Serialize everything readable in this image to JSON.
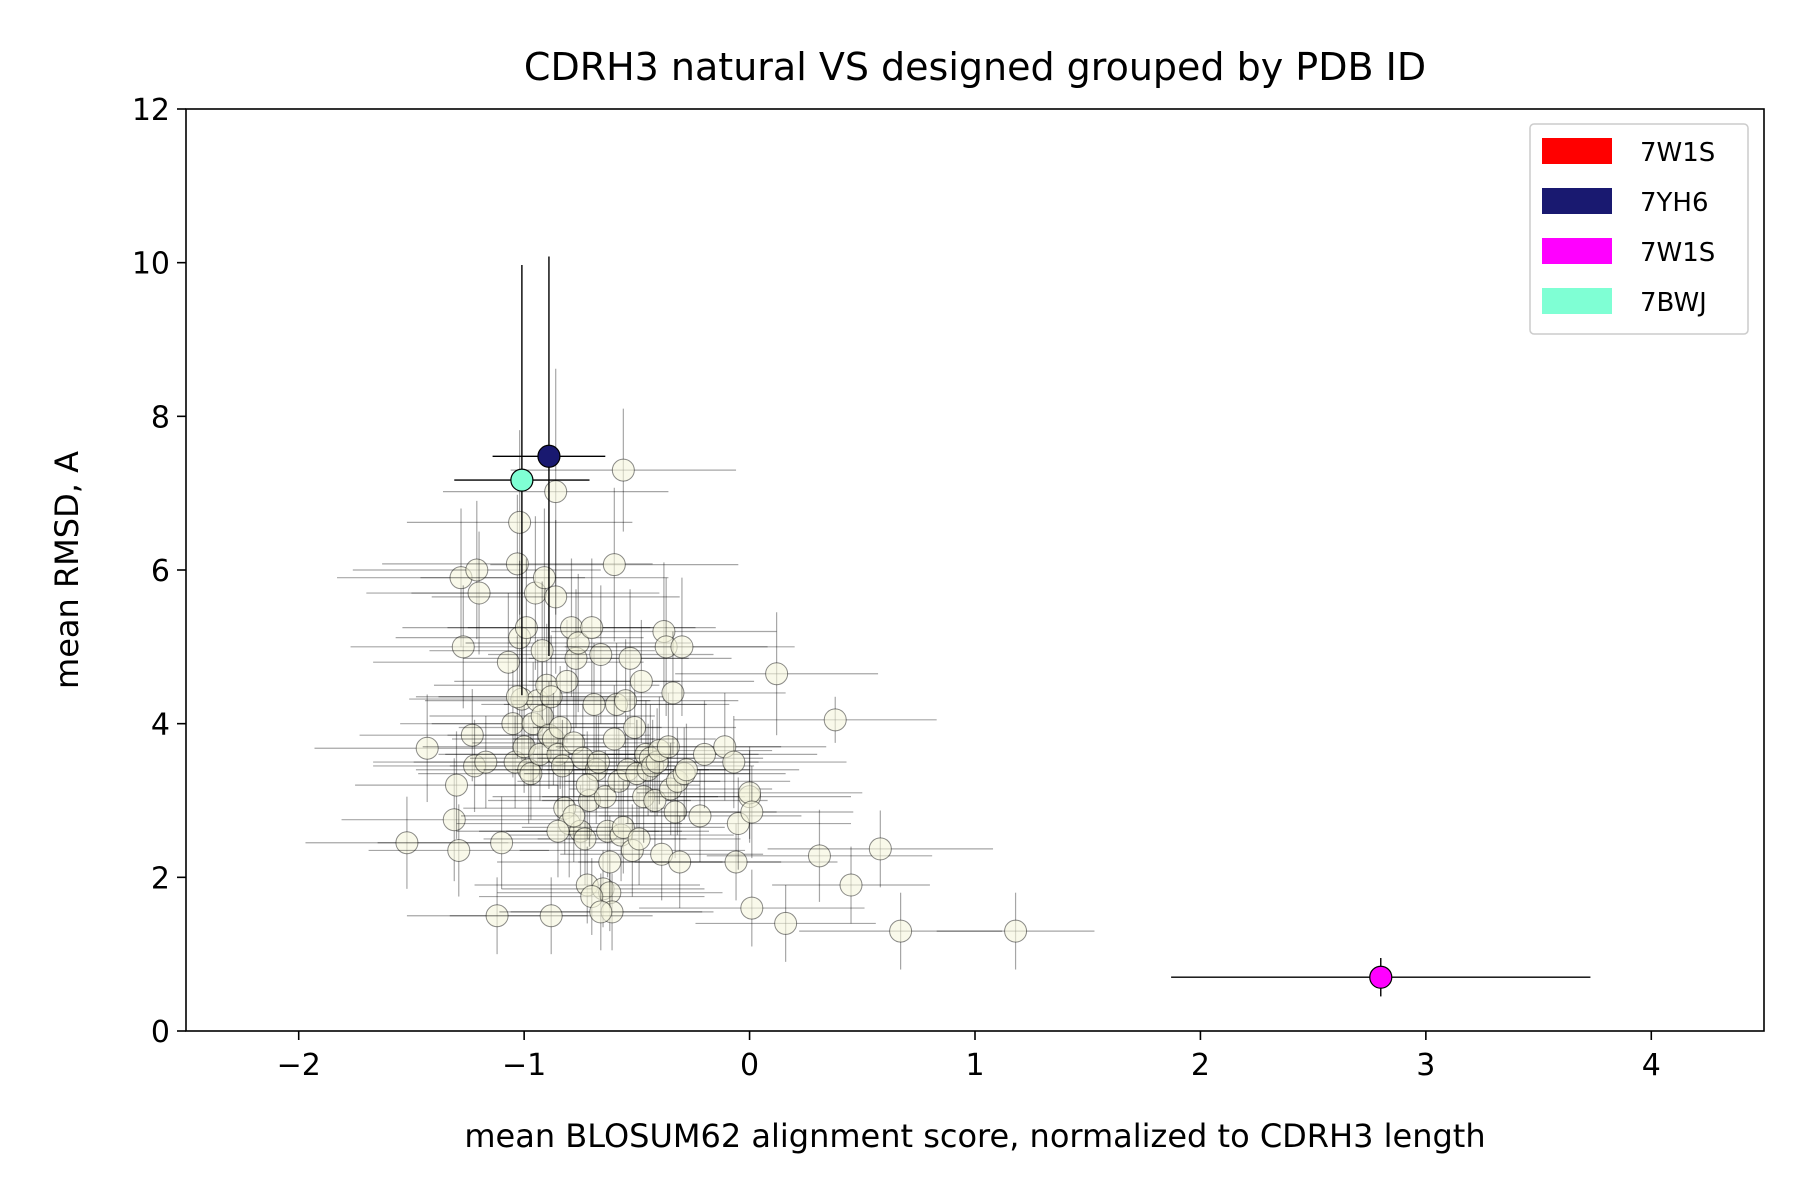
{
  "chart_data": {
    "type": "scatter",
    "title": "CDRH3 natural VS designed grouped by PDB ID",
    "xlabel": "mean BLOSUM62 alignment score, normalized to CDRH3 length",
    "ylabel": "mean RMSD, A",
    "xlim": [
      -2.5,
      4.5
    ],
    "ylim": [
      0,
      12
    ],
    "xticks": [
      -2,
      -1,
      0,
      1,
      2,
      3,
      4
    ],
    "xtick_labels": [
      "−2",
      "−1",
      "0",
      "1",
      "2",
      "3",
      "4"
    ],
    "yticks": [
      0,
      2,
      4,
      6,
      8,
      10,
      12
    ],
    "ytick_labels": [
      "0",
      "2",
      "4",
      "6",
      "8",
      "10",
      "12"
    ],
    "grid": false,
    "legend_position": "top-right",
    "legend": [
      {
        "label": "7W1S",
        "color": "#ff0000"
      },
      {
        "label": "7YH6",
        "color": "#191970"
      },
      {
        "label": "7W1S",
        "color": "#ff00ff"
      },
      {
        "label": "7BWJ",
        "color": "#7fffd4"
      }
    ],
    "background_points": {
      "color": "#f5f5dc",
      "x": [
        -1.52,
        -1.43,
        -1.31,
        -1.3,
        -1.29,
        -1.28,
        -1.27,
        -1.23,
        -1.22,
        -1.21,
        -1.2,
        -1.17,
        -1.12,
        -1.1,
        -1.07,
        -1.05,
        -1.04,
        -1.03,
        -1.02,
        -1.01,
        -1.0,
        -0.99,
        -0.98,
        -0.97,
        -0.96,
        -0.95,
        -0.94,
        -0.93,
        -0.92,
        -0.91,
        -0.9,
        -0.89,
        -0.88,
        -0.87,
        -0.86,
        -0.85,
        -0.84,
        -0.83,
        -0.82,
        -0.81,
        -0.8,
        -0.79,
        -0.78,
        -0.77,
        -0.76,
        -0.75,
        -0.74,
        -0.73,
        -0.72,
        -0.71,
        -0.7,
        -0.69,
        -0.68,
        -0.67,
        -0.66,
        -0.65,
        -0.64,
        -0.63,
        -0.62,
        -0.61,
        -0.6,
        -0.59,
        -0.58,
        -0.57,
        -0.56,
        -0.55,
        -0.54,
        -0.53,
        -0.52,
        -0.51,
        -0.5,
        -0.49,
        -0.48,
        -0.47,
        -0.46,
        -0.45,
        -0.44,
        -0.43,
        -0.42,
        -0.41,
        -0.4,
        -0.39,
        -0.38,
        -0.37,
        -0.36,
        -0.35,
        -0.34,
        -0.33,
        -0.32,
        -0.31,
        -0.3,
        -0.29,
        -0.28,
        -0.22,
        -0.2,
        -0.11,
        -0.07,
        -0.06,
        -0.05,
        0.0,
        0.0,
        0.01,
        0.01,
        0.12,
        0.16,
        0.31,
        0.38,
        0.45,
        0.58,
        0.67,
        1.18,
        -0.86,
        -0.56,
        -1.02,
        -1.03,
        -0.92,
        -0.6,
        -0.78,
        -0.88,
        -0.7,
        -0.85,
        -0.62,
        -0.66,
        -0.72
      ],
      "y": [
        2.45,
        3.68,
        2.75,
        3.2,
        2.35,
        5.9,
        5.0,
        3.85,
        3.45,
        6.0,
        5.7,
        3.5,
        1.5,
        2.45,
        4.8,
        4.0,
        3.5,
        6.08,
        5.12,
        4.32,
        3.7,
        5.25,
        3.4,
        3.35,
        4.0,
        5.7,
        4.3,
        3.6,
        4.1,
        5.9,
        4.5,
        3.85,
        4.35,
        3.8,
        5.65,
        3.6,
        3.95,
        3.45,
        2.9,
        4.55,
        2.7,
        5.25,
        3.75,
        4.85,
        5.05,
        2.6,
        3.55,
        2.5,
        1.9,
        3.0,
        5.25,
        4.25,
        3.4,
        3.5,
        4.9,
        1.85,
        3.05,
        2.6,
        1.8,
        1.55,
        6.07,
        4.25,
        3.25,
        2.55,
        2.65,
        4.3,
        3.4,
        4.85,
        2.35,
        3.95,
        3.35,
        2.5,
        4.55,
        3.05,
        3.6,
        3.4,
        3.55,
        3.45,
        3.0,
        3.5,
        3.65,
        2.3,
        5.2,
        5.0,
        3.7,
        3.15,
        4.4,
        2.85,
        3.25,
        2.2,
        5.0,
        3.35,
        3.4,
        2.8,
        3.6,
        3.7,
        3.5,
        2.2,
        2.7,
        3.05,
        3.1,
        2.85,
        1.6,
        4.65,
        1.4,
        2.28,
        4.05,
        1.9,
        2.37,
        1.3,
        1.3,
        7.02,
        7.3,
        6.62,
        4.35,
        4.95,
        3.8,
        2.8,
        1.5,
        1.75,
        2.6,
        2.2,
        1.55,
        3.2
      ],
      "xerr": [
        0.45,
        0.5,
        0.5,
        0.45,
        0.4,
        0.55,
        0.5,
        0.5,
        0.45,
        0.55,
        0.5,
        0.5,
        0.4,
        0.55,
        0.6,
        0.5,
        0.45,
        0.6,
        0.55,
        0.5,
        0.45,
        0.55,
        0.5,
        0.5,
        0.45,
        0.55,
        0.5,
        0.45,
        0.5,
        0.55,
        0.5,
        0.45,
        0.5,
        0.45,
        0.55,
        0.5,
        0.45,
        0.5,
        0.45,
        0.5,
        0.5,
        0.55,
        0.45,
        0.5,
        0.5,
        0.45,
        0.5,
        0.45,
        0.5,
        0.45,
        0.55,
        0.5,
        0.5,
        0.45,
        0.5,
        0.45,
        0.5,
        0.45,
        0.5,
        0.45,
        0.55,
        0.5,
        0.45,
        0.5,
        0.45,
        0.5,
        0.5,
        0.45,
        0.5,
        0.45,
        0.5,
        0.45,
        0.5,
        0.45,
        0.5,
        0.45,
        0.5,
        0.45,
        0.5,
        0.45,
        0.5,
        0.45,
        0.5,
        0.45,
        0.5,
        0.45,
        0.5,
        0.45,
        0.5,
        0.45,
        0.5,
        0.45,
        0.5,
        0.45,
        0.5,
        0.45,
        0.5,
        0.45,
        0.5,
        0.45,
        0.5,
        0.45,
        0.5,
        0.45,
        0.4,
        0.5,
        0.45,
        0.35,
        0.5,
        0.45,
        0.35,
        0.5,
        0.5,
        0.5,
        0.45,
        0.5,
        0.45,
        0.5,
        0.45,
        0.5,
        0.45,
        0.5,
        0.45,
        0.5
      ],
      "yerr": [
        0.6,
        0.7,
        0.8,
        0.7,
        0.6,
        0.9,
        0.8,
        0.6,
        0.6,
        0.9,
        0.8,
        0.6,
        0.5,
        0.6,
        0.9,
        0.7,
        0.6,
        0.9,
        1.0,
        0.8,
        0.6,
        0.9,
        0.7,
        0.6,
        0.8,
        1.0,
        0.8,
        0.6,
        0.7,
        0.9,
        0.8,
        0.7,
        0.8,
        0.6,
        1.0,
        0.7,
        0.8,
        0.6,
        0.6,
        0.8,
        0.7,
        0.9,
        0.7,
        0.9,
        0.9,
        0.6,
        0.7,
        0.6,
        0.5,
        0.6,
        0.9,
        0.8,
        0.7,
        0.6,
        0.9,
        0.5,
        0.6,
        0.6,
        0.5,
        0.5,
        1.0,
        0.8,
        0.7,
        0.6,
        0.6,
        0.8,
        0.7,
        0.9,
        0.6,
        0.7,
        0.7,
        0.6,
        0.8,
        0.6,
        0.7,
        0.6,
        0.7,
        0.6,
        0.6,
        0.7,
        0.7,
        0.6,
        0.9,
        0.9,
        0.7,
        0.6,
        0.8,
        0.6,
        0.7,
        0.6,
        0.9,
        0.6,
        0.6,
        0.6,
        0.7,
        0.7,
        0.6,
        0.5,
        0.6,
        0.6,
        0.6,
        0.6,
        0.5,
        0.8,
        0.5,
        0.6,
        0.3,
        0.5,
        0.5,
        0.5,
        0.5,
        1.6,
        0.8,
        1.2,
        0.8,
        0.9,
        0.7,
        0.6,
        0.5,
        0.5,
        0.6,
        0.6,
        0.5,
        0.7
      ]
    },
    "highlighted_points": [
      {
        "name": "7YH6",
        "x": -0.89,
        "y": 7.48,
        "xerr": 0.25,
        "yerr": 2.6,
        "color": "#191970"
      },
      {
        "name": "7BWJ",
        "x": -1.01,
        "y": 7.17,
        "xerr": 0.3,
        "yerr": 2.8,
        "color": "#7fffd4"
      },
      {
        "name": "7W1S",
        "x": 2.8,
        "y": 0.7,
        "xerr": 0.93,
        "yerr": 0.25,
        "color": "#ff00ff"
      }
    ]
  }
}
